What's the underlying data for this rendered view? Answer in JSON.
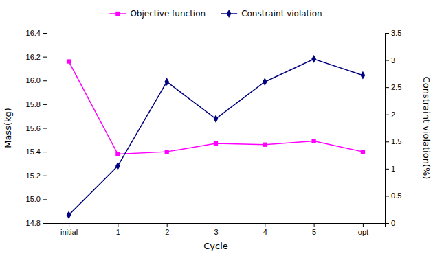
{
  "chart_data": {
    "type": "line",
    "categories": [
      "initial",
      "1",
      "2",
      "3",
      "4",
      "5",
      "opt"
    ],
    "x_label": "Cycle",
    "y_label": "Mass(kg)",
    "y2_label": "Constraint violation(%)",
    "series": [
      {
        "name": "Objective function",
        "color": "#FF00FF",
        "marker": "square",
        "values": [
          16.16,
          15.38,
          15.4,
          15.47,
          15.46,
          15.49,
          15.4
        ]
      },
      {
        "name": "Constraint violation",
        "color": "#000080",
        "marker": "diamond",
        "axis": "y2",
        "values": [
          0.15,
          1.05,
          2.6,
          1.92,
          2.6,
          3.02,
          2.72
        ]
      }
    ],
    "ylim": [
      14.8,
      16.4
    ],
    "yticks": [
      14.8,
      {
        "value": 15.0,
        "label": "15.0"
      },
      15.2,
      15.4,
      15.6,
      15.8,
      {
        "value": 16.0,
        "label": "16.0"
      },
      16.2,
      16.4
    ],
    "y2lim": [
      0,
      3.5
    ],
    "y2ticks": [
      0,
      0.5,
      1,
      1.5,
      2,
      2.5,
      3,
      3.5
    ],
    "grid": false,
    "legend": "top"
  }
}
